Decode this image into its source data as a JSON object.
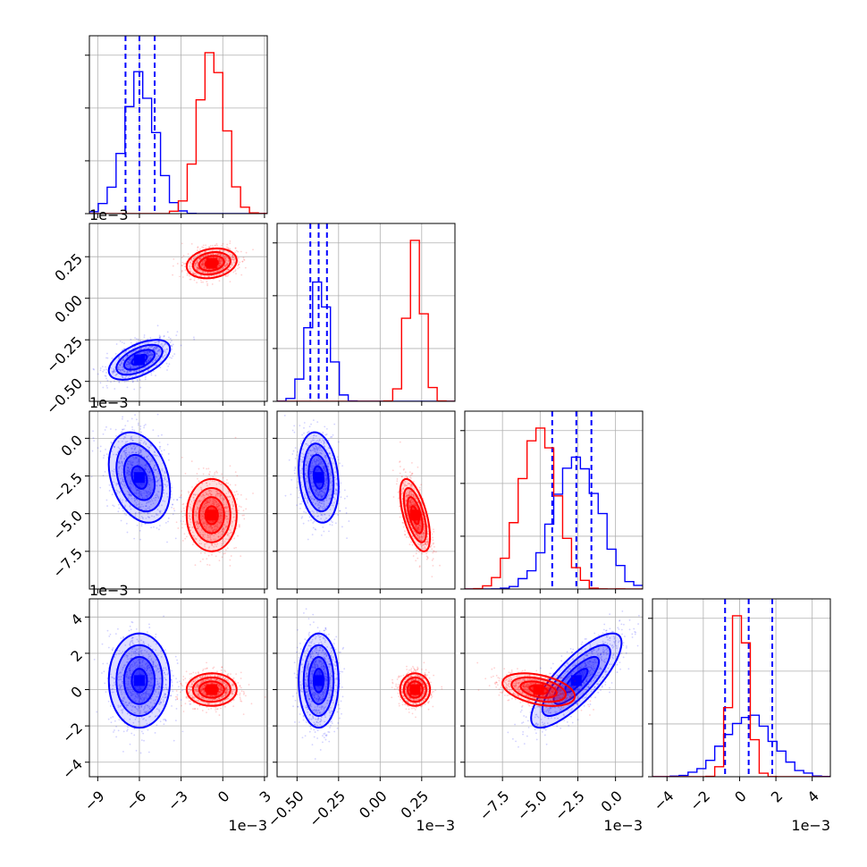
{
  "chart_data": {
    "type": "corner",
    "colors": {
      "series_a": "#0000ff",
      "series_b": "#ff0000"
    },
    "grid": true,
    "params": [
      {
        "ticks": [
          -9,
          -6,
          -3,
          0,
          3
        ],
        "tick_labels": [
          "−9",
          "−6",
          "−3",
          "0",
          "3"
        ],
        "range": [
          -9.6,
          3.2
        ],
        "offset_text": "1e−3"
      },
      {
        "ticks": [
          -0.5,
          -0.25,
          0,
          0.25
        ],
        "tick_labels": [
          "−0.50",
          "−0.25",
          "0.00",
          "0.25"
        ],
        "range": [
          -0.62,
          0.45
        ],
        "offset_text": "1e−3"
      },
      {
        "ticks": [
          -7.5,
          -5,
          -2.5,
          0
        ],
        "tick_labels": [
          "−7.5",
          "−5.0",
          "−2.5",
          "0.0"
        ],
        "range": [
          -10,
          1.8
        ],
        "offset_text": "1e−3"
      },
      {
        "ticks": [
          -4,
          -2,
          0,
          2,
          4
        ],
        "tick_labels": [
          "−4",
          "−2",
          "0",
          "2",
          "4"
        ],
        "range": [
          -4.8,
          5.0
        ],
        "offset_text": "1e−3"
      }
    ],
    "series": [
      {
        "color_key": "series_a",
        "mean": [
          -6.0,
          -0.37,
          -2.6,
          0.5
        ],
        "std": [
          1.1,
          0.06,
          1.5,
          1.3
        ],
        "quantiles": [
          [
            -7.0,
            -6.0,
            -4.9
          ],
          [
            -0.42,
            -0.37,
            -0.32
          ],
          [
            -4.2,
            -2.6,
            -1.6
          ],
          [
            -0.8,
            0.5,
            1.8
          ]
        ],
        "correlation": [
          [
            1,
            0.55,
            -0.3,
            0
          ],
          [
            0.55,
            1,
            -0.2,
            0
          ],
          [
            -0.3,
            -0.2,
            1,
            0.8
          ],
          [
            0,
            0,
            0.8,
            1
          ]
        ]
      },
      {
        "color_key": "series_b",
        "mean": [
          -0.8,
          0.21,
          -5.1,
          0.0
        ],
        "std": [
          0.9,
          0.045,
          1.2,
          0.45
        ],
        "correlation": [
          [
            1,
            0.2,
            0,
            0
          ],
          [
            0.2,
            1,
            -0.6,
            0
          ],
          [
            0,
            -0.6,
            1,
            -0.4
          ],
          [
            0,
            0,
            -0.4,
            1
          ]
        ]
      }
    ]
  }
}
